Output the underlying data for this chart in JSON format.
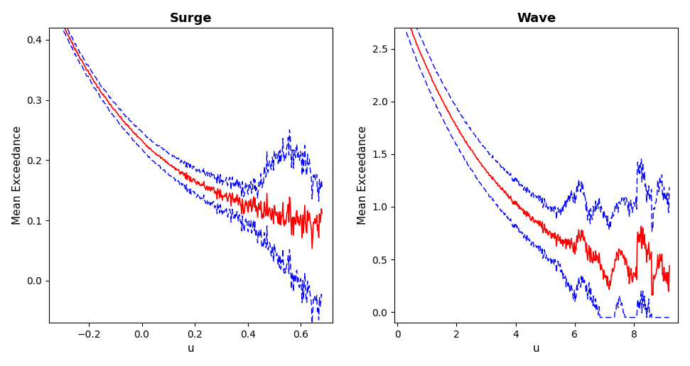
{
  "surge_title": "Surge",
  "wave_title": "Wave",
  "xlabel": "u",
  "ylabel": "Mean Exceedance",
  "surge_xlim": [
    -0.35,
    0.72
  ],
  "surge_ylim": [
    -0.07,
    0.42
  ],
  "surge_xticks": [
    -0.2,
    0.0,
    0.2,
    0.4,
    0.6
  ],
  "surge_yticks": [
    0.0,
    0.1,
    0.2,
    0.3,
    0.4
  ],
  "wave_xlim": [
    -0.1,
    9.5
  ],
  "wave_ylim": [
    -0.1,
    2.7
  ],
  "wave_xticks": [
    0,
    2,
    4,
    6,
    8
  ],
  "wave_yticks": [
    0.0,
    0.5,
    1.0,
    1.5,
    2.0,
    2.5
  ],
  "line_color": "#FF0000",
  "ci_color": "#0000FF",
  "bg_color": "#FFFFFF",
  "title_fontsize": 13,
  "label_fontsize": 11,
  "tick_fontsize": 10
}
